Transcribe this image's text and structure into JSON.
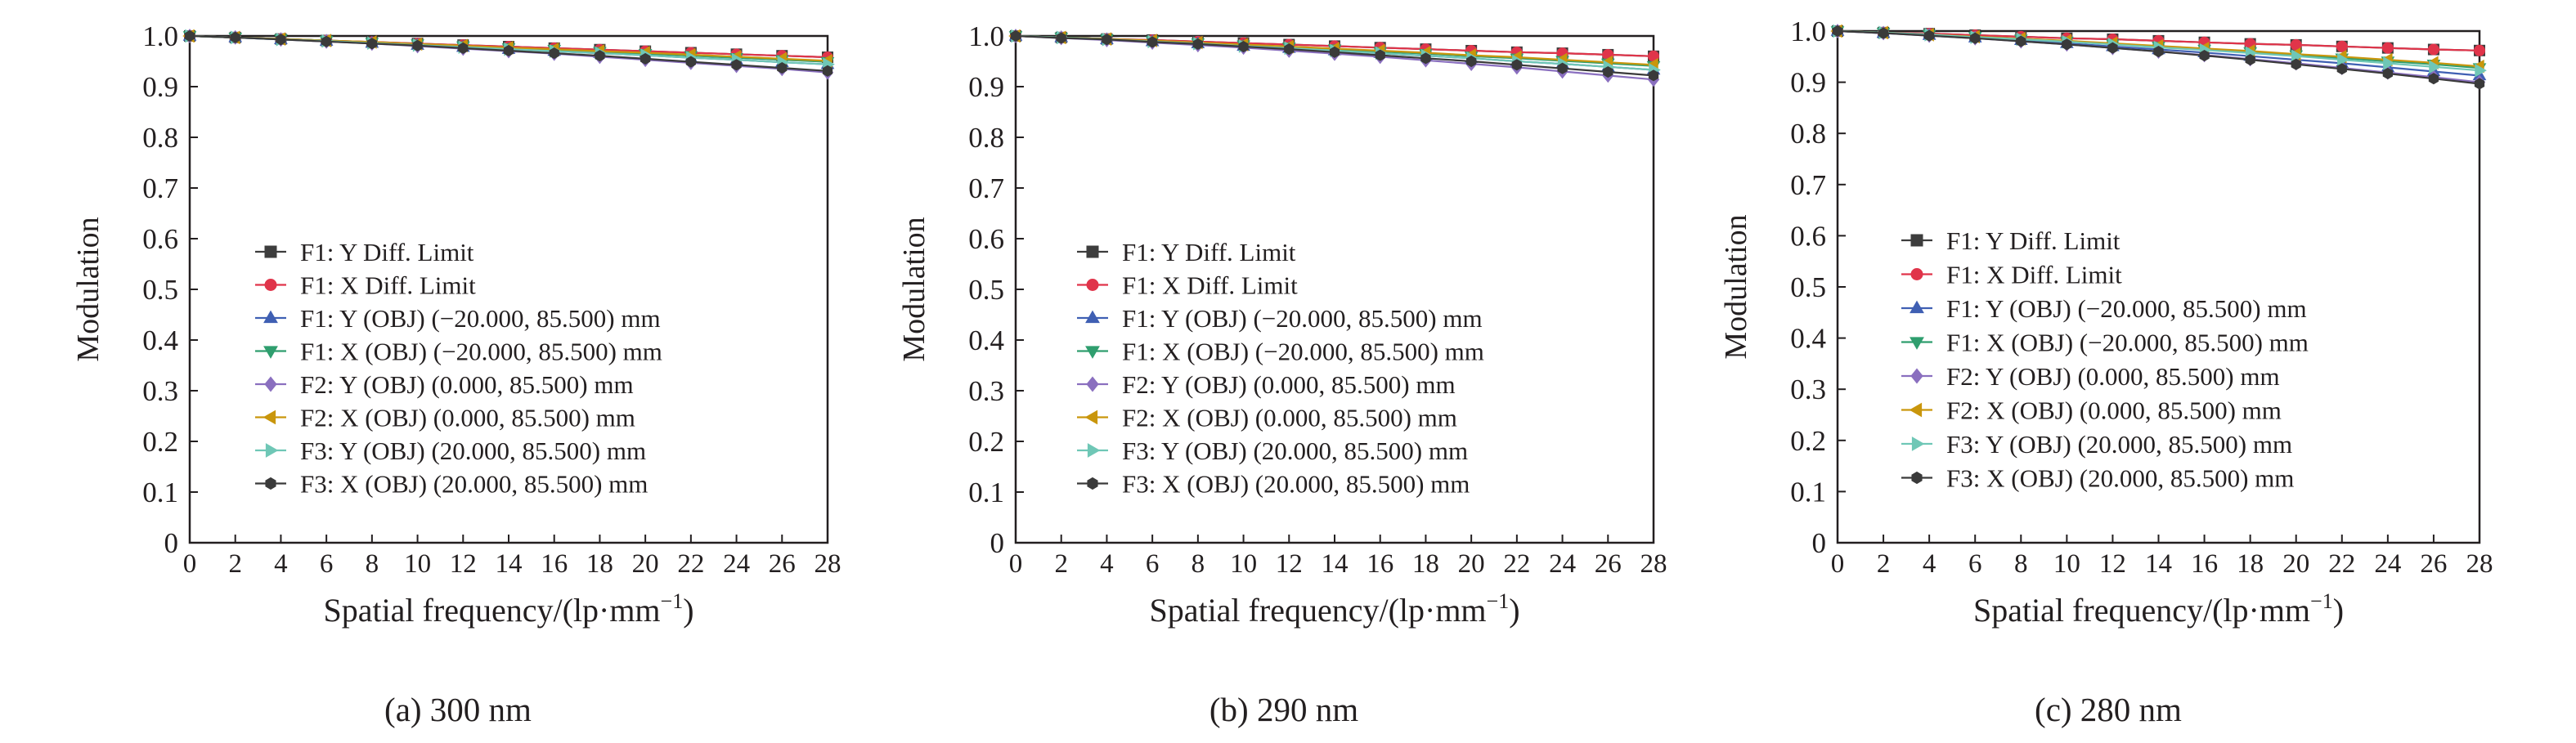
{
  "x_axis_label": "Spatial frequency/(lp·mm",
  "x_axis_superscript": "−1",
  "x_axis_close": ")",
  "y_axis_label": "Modulation",
  "legend_labels": [
    "F1: Y Diff. Limit",
    "F1: X Diff. Limit",
    "F1: Y (OBJ) (−20.000, 85.500) mm",
    "F1: X (OBJ) (−20.000, 85.500) mm",
    "F2: Y (OBJ) (0.000, 85.500) mm",
    "F2: X (OBJ) (0.000, 85.500) mm",
    "F3: Y (OBJ) (20.000, 85.500) mm",
    "F3: X (OBJ) (20.000, 85.500) mm"
  ],
  "series_style": [
    {
      "color": "#3d3d3d",
      "marker": "square"
    },
    {
      "color": "#e0344a",
      "marker": "circle"
    },
    {
      "color": "#3f5fb3",
      "marker": "triangle-up"
    },
    {
      "color": "#2f9e6e",
      "marker": "triangle-down"
    },
    {
      "color": "#8a6fbf",
      "marker": "diamond"
    },
    {
      "color": "#c9960c",
      "marker": "triangle-left"
    },
    {
      "color": "#6fc7b6",
      "marker": "triangle-right"
    },
    {
      "color": "#3a3a3a",
      "marker": "hexagon"
    }
  ],
  "chart_data": [
    {
      "type": "line",
      "caption": "(a) 300 nm",
      "xlabel": "Spatial frequency/(lp·mm−1)",
      "ylabel": "Modulation",
      "xlim": [
        0,
        28
      ],
      "ylim": [
        0,
        1.0
      ],
      "x": [
        0,
        2,
        4,
        6,
        8,
        10,
        12,
        14,
        16,
        18,
        20,
        22,
        24,
        26,
        28
      ],
      "xticks": [
        0,
        2,
        4,
        6,
        8,
        10,
        12,
        14,
        16,
        18,
        20,
        22,
        24,
        26,
        28
      ],
      "yticks": [
        0,
        0.1,
        0.2,
        0.3,
        0.4,
        0.5,
        0.6,
        0.7,
        0.8,
        0.9,
        1.0
      ],
      "legend_position": "lower-left",
      "series": [
        {
          "name": "F1: Y Diff. Limit",
          "values": [
            1.0,
            0.997,
            0.994,
            0.991,
            0.988,
            0.985,
            0.982,
            0.979,
            0.976,
            0.973,
            0.97,
            0.967,
            0.964,
            0.961,
            0.958
          ]
        },
        {
          "name": "F1: X Diff. Limit",
          "values": [
            1.0,
            0.997,
            0.994,
            0.991,
            0.988,
            0.985,
            0.982,
            0.979,
            0.976,
            0.973,
            0.97,
            0.967,
            0.964,
            0.961,
            0.958
          ]
        },
        {
          "name": "F1: Y (OBJ) (−20.000, 85.500) mm",
          "values": [
            1.0,
            0.997,
            0.993,
            0.99,
            0.986,
            0.982,
            0.978,
            0.974,
            0.97,
            0.966,
            0.962,
            0.957,
            0.953,
            0.948,
            0.944
          ]
        },
        {
          "name": "F1: X (OBJ) (−20.000, 85.500) mm",
          "values": [
            1.0,
            0.997,
            0.994,
            0.991,
            0.987,
            0.984,
            0.98,
            0.976,
            0.973,
            0.969,
            0.965,
            0.961,
            0.957,
            0.953,
            0.949
          ]
        },
        {
          "name": "F2: Y (OBJ) (0.000, 85.500) mm",
          "values": [
            1.0,
            0.997,
            0.993,
            0.989,
            0.985,
            0.98,
            0.975,
            0.97,
            0.965,
            0.959,
            0.953,
            0.947,
            0.941,
            0.935,
            0.928
          ]
        },
        {
          "name": "F2: X (OBJ) (0.000, 85.500) mm",
          "values": [
            1.0,
            0.997,
            0.994,
            0.991,
            0.988,
            0.984,
            0.981,
            0.977,
            0.974,
            0.97,
            0.967,
            0.963,
            0.959,
            0.955,
            0.951
          ]
        },
        {
          "name": "F3: Y (OBJ) (20.000, 85.500) mm",
          "values": [
            1.0,
            0.997,
            0.993,
            0.99,
            0.986,
            0.982,
            0.978,
            0.974,
            0.97,
            0.966,
            0.962,
            0.957,
            0.953,
            0.948,
            0.944
          ]
        },
        {
          "name": "F3: X (OBJ) (20.000, 85.500) mm",
          "values": [
            1.0,
            0.997,
            0.993,
            0.989,
            0.985,
            0.981,
            0.976,
            0.971,
            0.966,
            0.961,
            0.955,
            0.949,
            0.943,
            0.937,
            0.931
          ]
        }
      ]
    },
    {
      "type": "line",
      "caption": "(b) 290 nm",
      "xlabel": "Spatial frequency/(lp·mm−1)",
      "ylabel": "Modulation",
      "xlim": [
        0,
        28
      ],
      "ylim": [
        0,
        1.0
      ],
      "x": [
        0,
        2,
        4,
        6,
        8,
        10,
        12,
        14,
        16,
        18,
        20,
        22,
        24,
        26,
        28
      ],
      "xticks": [
        0,
        2,
        4,
        6,
        8,
        10,
        12,
        14,
        16,
        18,
        20,
        22,
        24,
        26,
        28
      ],
      "yticks": [
        0,
        0.1,
        0.2,
        0.3,
        0.4,
        0.5,
        0.6,
        0.7,
        0.8,
        0.9,
        1.0
      ],
      "legend_position": "lower-left",
      "series": [
        {
          "name": "F1: Y Diff. Limit",
          "values": [
            1.0,
            0.997,
            0.994,
            0.992,
            0.989,
            0.986,
            0.983,
            0.98,
            0.977,
            0.974,
            0.971,
            0.968,
            0.966,
            0.963,
            0.96
          ]
        },
        {
          "name": "F1: X Diff. Limit",
          "values": [
            1.0,
            0.997,
            0.994,
            0.992,
            0.989,
            0.986,
            0.983,
            0.98,
            0.977,
            0.974,
            0.971,
            0.968,
            0.966,
            0.963,
            0.96
          ]
        },
        {
          "name": "F1: Y (OBJ) (−20.000, 85.500) mm",
          "values": [
            1.0,
            0.997,
            0.993,
            0.989,
            0.985,
            0.98,
            0.976,
            0.971,
            0.966,
            0.961,
            0.956,
            0.95,
            0.945,
            0.939,
            0.933
          ]
        },
        {
          "name": "F1: X (OBJ) (−20.000, 85.500) mm",
          "values": [
            1.0,
            0.997,
            0.994,
            0.99,
            0.986,
            0.982,
            0.978,
            0.974,
            0.969,
            0.965,
            0.96,
            0.956,
            0.951,
            0.946,
            0.941
          ]
        },
        {
          "name": "F2: Y (OBJ) (0.000, 85.500) mm",
          "values": [
            1.0,
            0.996,
            0.992,
            0.987,
            0.982,
            0.977,
            0.971,
            0.965,
            0.959,
            0.952,
            0.945,
            0.938,
            0.93,
            0.922,
            0.914
          ]
        },
        {
          "name": "F2: X (OBJ) (0.000, 85.500) mm",
          "values": [
            1.0,
            0.997,
            0.994,
            0.991,
            0.987,
            0.983,
            0.979,
            0.975,
            0.971,
            0.967,
            0.962,
            0.958,
            0.953,
            0.948,
            0.943
          ]
        },
        {
          "name": "F3: Y (OBJ) (20.000, 85.500) mm",
          "values": [
            1.0,
            0.997,
            0.993,
            0.989,
            0.985,
            0.98,
            0.976,
            0.971,
            0.966,
            0.961,
            0.956,
            0.95,
            0.945,
            0.939,
            0.933
          ]
        },
        {
          "name": "F3: X (OBJ) (20.000, 85.500) mm",
          "values": [
            1.0,
            0.996,
            0.993,
            0.988,
            0.984,
            0.979,
            0.974,
            0.968,
            0.962,
            0.956,
            0.95,
            0.943,
            0.936,
            0.929,
            0.922
          ]
        }
      ]
    },
    {
      "type": "line",
      "caption": "(c) 280 nm",
      "xlabel": "Spatial frequency/(lp·mm−1)",
      "ylabel": "Modulation",
      "xlim": [
        0,
        28
      ],
      "ylim": [
        0,
        1.0
      ],
      "x": [
        0,
        2,
        4,
        6,
        8,
        10,
        12,
        14,
        16,
        18,
        20,
        22,
        24,
        26,
        28
      ],
      "xticks": [
        0,
        2,
        4,
        6,
        8,
        10,
        12,
        14,
        16,
        18,
        20,
        22,
        24,
        26,
        28
      ],
      "yticks": [
        0,
        0.1,
        0.2,
        0.3,
        0.4,
        0.5,
        0.6,
        0.7,
        0.8,
        0.9,
        1.0
      ],
      "legend_position": "lower-left",
      "series": [
        {
          "name": "F1: Y Diff. Limit",
          "values": [
            1.0,
            0.997,
            0.995,
            0.992,
            0.989,
            0.986,
            0.984,
            0.981,
            0.978,
            0.975,
            0.973,
            0.97,
            0.967,
            0.964,
            0.962
          ]
        },
        {
          "name": "F1: X Diff. Limit",
          "values": [
            1.0,
            0.997,
            0.995,
            0.992,
            0.989,
            0.986,
            0.984,
            0.981,
            0.978,
            0.975,
            0.973,
            0.97,
            0.967,
            0.964,
            0.962
          ]
        },
        {
          "name": "F1: Y (OBJ) (−20.000, 85.500) mm",
          "values": [
            1.0,
            0.996,
            0.992,
            0.987,
            0.982,
            0.976,
            0.97,
            0.964,
            0.958,
            0.951,
            0.944,
            0.937,
            0.929,
            0.921,
            0.913
          ]
        },
        {
          "name": "F1: X (OBJ) (−20.000, 85.500) mm",
          "values": [
            1.0,
            0.997,
            0.993,
            0.989,
            0.984,
            0.98,
            0.975,
            0.97,
            0.964,
            0.959,
            0.953,
            0.947,
            0.941,
            0.935,
            0.928
          ]
        },
        {
          "name": "F2: Y (OBJ) (0.000, 85.500) mm",
          "values": [
            1.0,
            0.996,
            0.991,
            0.986,
            0.98,
            0.974,
            0.967,
            0.96,
            0.953,
            0.945,
            0.937,
            0.928,
            0.919,
            0.91,
            0.9
          ]
        },
        {
          "name": "F2: X (OBJ) (0.000, 85.500) mm",
          "values": [
            1.0,
            0.997,
            0.993,
            0.989,
            0.985,
            0.981,
            0.976,
            0.971,
            0.966,
            0.961,
            0.955,
            0.95,
            0.944,
            0.938,
            0.931
          ]
        },
        {
          "name": "F3: Y (OBJ) (20.000, 85.500) mm",
          "values": [
            1.0,
            0.997,
            0.993,
            0.988,
            0.984,
            0.979,
            0.974,
            0.968,
            0.963,
            0.957,
            0.951,
            0.944,
            0.937,
            0.93,
            0.923
          ]
        },
        {
          "name": "F3: X (OBJ) (20.000, 85.500) mm",
          "values": [
            1.0,
            0.996,
            0.991,
            0.986,
            0.98,
            0.974,
            0.967,
            0.96,
            0.952,
            0.944,
            0.935,
            0.926,
            0.917,
            0.907,
            0.897
          ]
        }
      ]
    }
  ]
}
